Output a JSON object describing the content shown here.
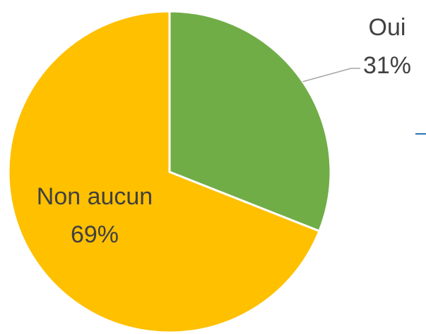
{
  "chart_data": {
    "type": "pie",
    "categories": [
      "Oui",
      "Non aucun"
    ],
    "values": [
      31,
      69
    ],
    "value_labels": [
      "31%",
      "69%"
    ],
    "colors": [
      "#70ad47",
      "#ffc000"
    ]
  }
}
